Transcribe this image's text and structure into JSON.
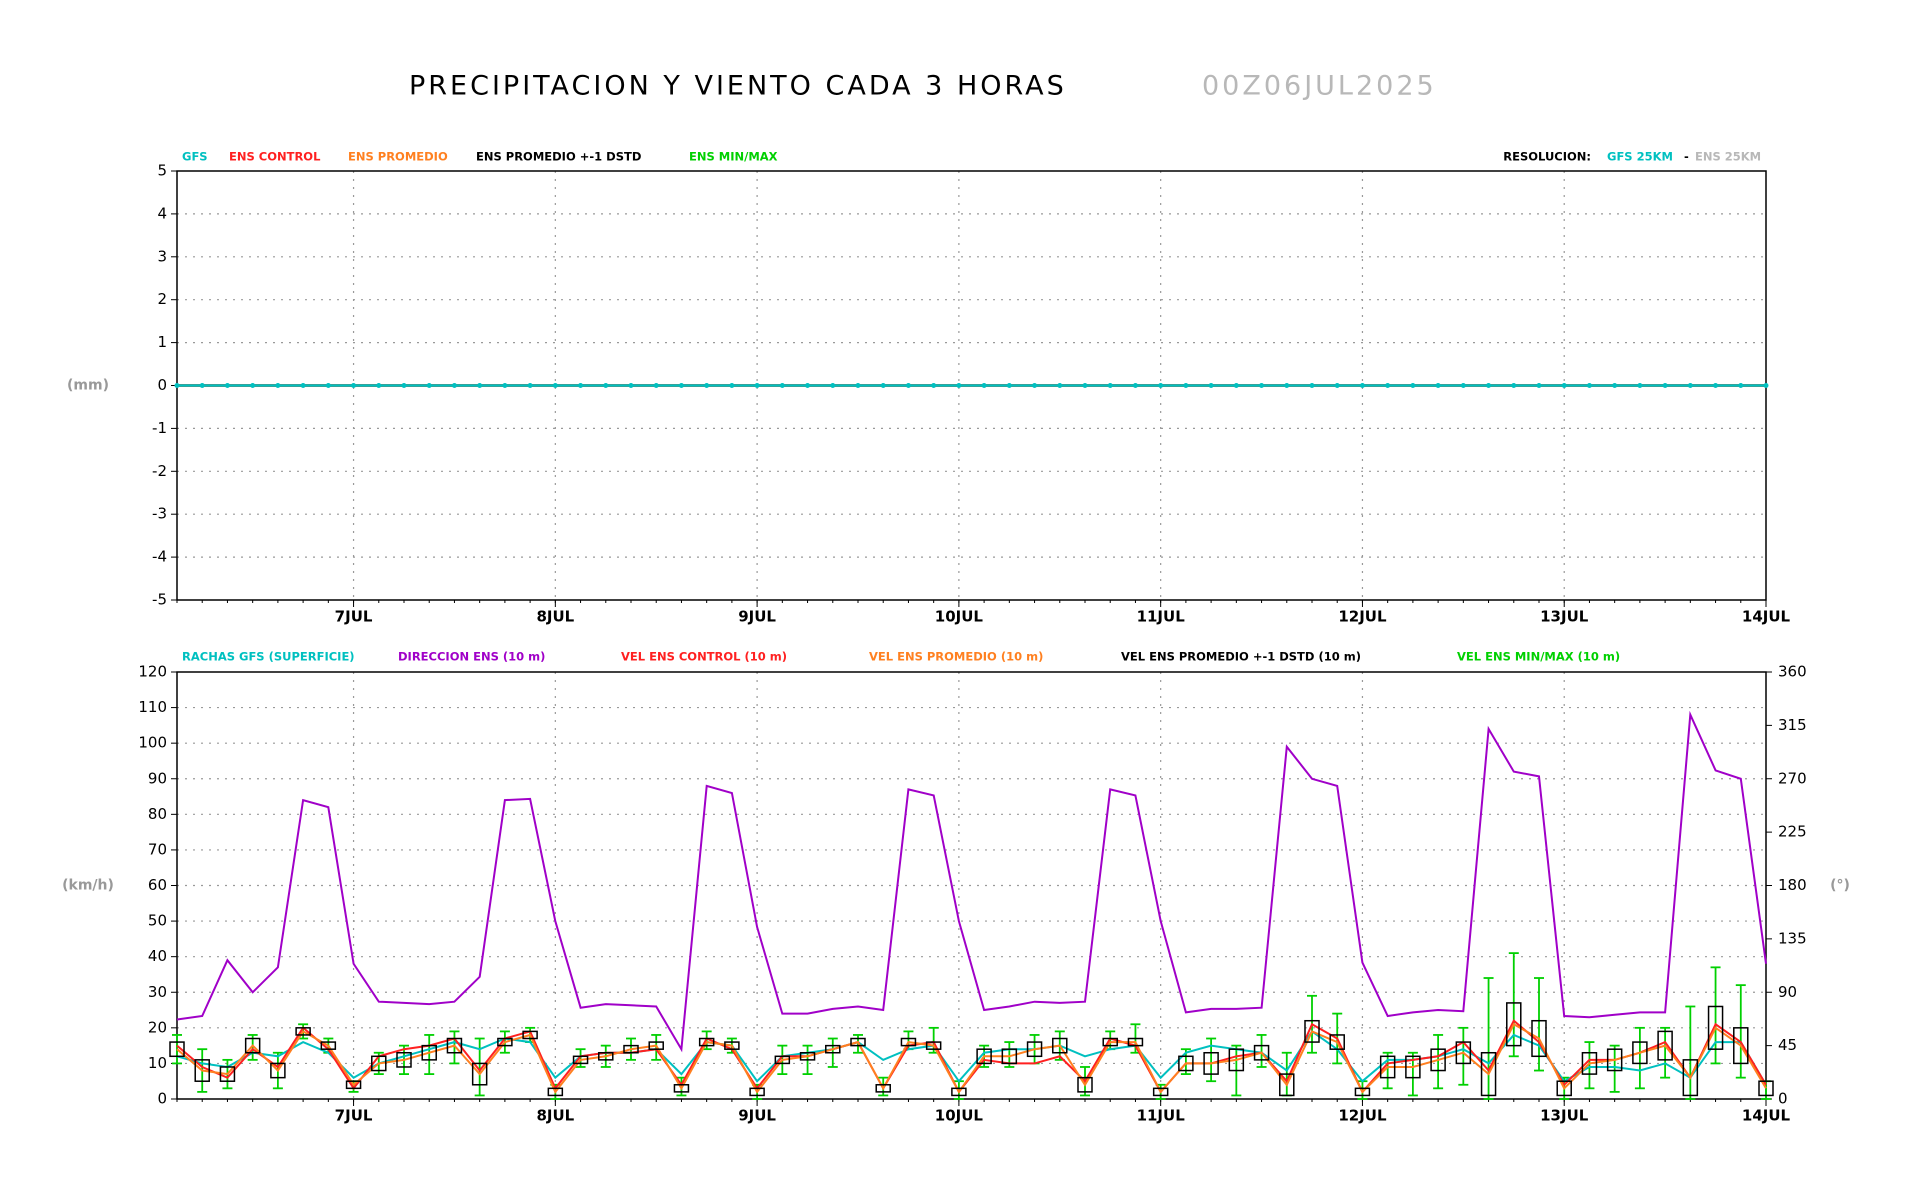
{
  "title": "PRECIPITACION Y VIENTO CADA 3 HORAS",
  "run": "00Z06JUL2025",
  "resolution": {
    "label": "RESOLUCION:",
    "gfs": "GFS 25KM",
    "separator": "-",
    "ens": "ENS 25KM"
  },
  "chart_data": [
    {
      "type": "line",
      "ylabel": "(mm)",
      "grid": true,
      "x": [
        3,
        6,
        9,
        12,
        15,
        18,
        21,
        24,
        27,
        30,
        33,
        36,
        39,
        42,
        45,
        48,
        51,
        54,
        57,
        60,
        63,
        66,
        69,
        72,
        75,
        78,
        81,
        84,
        87,
        90,
        93,
        96,
        99,
        102,
        105,
        108,
        111,
        114,
        117,
        120,
        123,
        126,
        129,
        132,
        135,
        138,
        141,
        144,
        147,
        150,
        153,
        156,
        159,
        162,
        165,
        168,
        171,
        174,
        177,
        180,
        183,
        186,
        189,
        192
      ],
      "xlim": [
        3,
        192
      ],
      "xticks": [
        {
          "value": 24,
          "label": "7JUL"
        },
        {
          "value": 48,
          "label": "8JUL"
        },
        {
          "value": 72,
          "label": "9JUL"
        },
        {
          "value": 96,
          "label": "10JUL"
        },
        {
          "value": 120,
          "label": "11JUL"
        },
        {
          "value": 144,
          "label": "12JUL"
        },
        {
          "value": 168,
          "label": "13JUL"
        },
        {
          "value": 192,
          "label": "14JUL"
        }
      ],
      "ylim": [
        -5,
        5
      ],
      "yticks": [
        -5,
        -4,
        -3,
        -2,
        -1,
        0,
        1,
        2,
        3,
        4,
        5
      ],
      "series": [
        {
          "name": "GFS",
          "color": "#00c0c0",
          "values": [
            0,
            0,
            0,
            0,
            0,
            0,
            0,
            0,
            0,
            0,
            0,
            0,
            0,
            0,
            0,
            0,
            0,
            0,
            0,
            0,
            0,
            0,
            0,
            0,
            0,
            0,
            0,
            0,
            0,
            0,
            0,
            0,
            0,
            0,
            0,
            0,
            0,
            0,
            0,
            0,
            0,
            0,
            0,
            0,
            0,
            0,
            0,
            0,
            0,
            0,
            0,
            0,
            0,
            0,
            0,
            0,
            0,
            0,
            0,
            0,
            0,
            0,
            0,
            0
          ]
        },
        {
          "name": "ENS CONTROL",
          "color": "#ff2020",
          "values": [
            0,
            0,
            0,
            0,
            0,
            0,
            0,
            0,
            0,
            0,
            0,
            0,
            0,
            0,
            0,
            0,
            0,
            0,
            0,
            0,
            0,
            0,
            0,
            0,
            0,
            0,
            0,
            0,
            0,
            0,
            0,
            0,
            0,
            0,
            0,
            0,
            0,
            0,
            0,
            0,
            0,
            0,
            0,
            0,
            0,
            0,
            0,
            0,
            0,
            0,
            0,
            0,
            0,
            0,
            0,
            0,
            0,
            0,
            0,
            0,
            0,
            0,
            0,
            0
          ]
        },
        {
          "name": "ENS PROMEDIO",
          "color": "#ff8020",
          "values": [
            0,
            0,
            0,
            0,
            0,
            0,
            0,
            0,
            0,
            0,
            0,
            0,
            0,
            0,
            0,
            0,
            0,
            0,
            0,
            0,
            0,
            0,
            0,
            0,
            0,
            0,
            0,
            0,
            0,
            0,
            0,
            0,
            0,
            0,
            0,
            0,
            0,
            0,
            0,
            0,
            0,
            0,
            0,
            0,
            0,
            0,
            0,
            0,
            0,
            0,
            0,
            0,
            0,
            0,
            0,
            0,
            0,
            0,
            0,
            0,
            0,
            0,
            0,
            0
          ]
        },
        {
          "name": "ENS PROMEDIO +-1 DSTD",
          "color": "#000000",
          "values": [
            0,
            0,
            0,
            0,
            0,
            0,
            0,
            0,
            0,
            0,
            0,
            0,
            0,
            0,
            0,
            0,
            0,
            0,
            0,
            0,
            0,
            0,
            0,
            0,
            0,
            0,
            0,
            0,
            0,
            0,
            0,
            0,
            0,
            0,
            0,
            0,
            0,
            0,
            0,
            0,
            0,
            0,
            0,
            0,
            0,
            0,
            0,
            0,
            0,
            0,
            0,
            0,
            0,
            0,
            0,
            0,
            0,
            0,
            0,
            0,
            0,
            0,
            0,
            0
          ]
        },
        {
          "name": "ENS MIN/MAX",
          "color": "#00d000",
          "values": [
            0,
            0,
            0,
            0,
            0,
            0,
            0,
            0,
            0,
            0,
            0,
            0,
            0,
            0,
            0,
            0,
            0,
            0,
            0,
            0,
            0,
            0,
            0,
            0,
            0,
            0,
            0,
            0,
            0,
            0,
            0,
            0,
            0,
            0,
            0,
            0,
            0,
            0,
            0,
            0,
            0,
            0,
            0,
            0,
            0,
            0,
            0,
            0,
            0,
            0,
            0,
            0,
            0,
            0,
            0,
            0,
            0,
            0,
            0,
            0,
            0,
            0,
            0,
            0
          ]
        }
      ]
    },
    {
      "type": "wind",
      "ylabel": "(km/h)",
      "y2label": "(°)",
      "grid": true,
      "x": [
        3,
        6,
        9,
        12,
        15,
        18,
        21,
        24,
        27,
        30,
        33,
        36,
        39,
        42,
        45,
        48,
        51,
        54,
        57,
        60,
        63,
        66,
        69,
        72,
        75,
        78,
        81,
        84,
        87,
        90,
        93,
        96,
        99,
        102,
        105,
        108,
        111,
        114,
        117,
        120,
        123,
        126,
        129,
        132,
        135,
        138,
        141,
        144,
        147,
        150,
        153,
        156,
        159,
        162,
        165,
        168,
        171,
        174,
        177,
        180,
        183,
        186,
        189,
        192
      ],
      "xlim": [
        3,
        192
      ],
      "xticks": [
        {
          "value": 24,
          "label": "7JUL"
        },
        {
          "value": 48,
          "label": "8JUL"
        },
        {
          "value": 72,
          "label": "9JUL"
        },
        {
          "value": 96,
          "label": "10JUL"
        },
        {
          "value": 120,
          "label": "11JUL"
        },
        {
          "value": 144,
          "label": "12JUL"
        },
        {
          "value": 168,
          "label": "13JUL"
        },
        {
          "value": 192,
          "label": "14JUL"
        }
      ],
      "ylim": [
        0,
        120
      ],
      "yticks": [
        0,
        10,
        20,
        30,
        40,
        50,
        60,
        70,
        80,
        90,
        100,
        110,
        120
      ],
      "y2lim": [
        0,
        360
      ],
      "y2ticks": [
        0,
        45,
        90,
        135,
        180,
        225,
        270,
        315,
        360
      ],
      "series": [
        {
          "name": "RACHAS GFS (SUPERFICIE)",
          "color": "#00c0c0",
          "values": [
            12,
            10,
            9,
            13,
            12,
            16,
            13,
            6,
            10,
            12,
            14,
            16,
            14,
            17,
            16,
            6,
            12,
            13,
            13,
            14,
            7,
            16,
            15,
            5,
            12,
            13,
            14,
            16,
            11,
            14,
            15,
            5,
            13,
            14,
            14,
            15,
            12,
            14,
            15,
            6,
            13,
            15,
            14,
            13,
            8,
            19,
            14,
            5,
            11,
            11,
            12,
            14,
            10,
            18,
            15,
            5,
            9,
            9,
            8,
            10,
            6,
            16,
            16,
            4
          ]
        },
        {
          "name": "DIRECCION ENS (10 m)",
          "color": "#a000c8",
          "axis": "y2",
          "values": [
            67,
            70,
            117,
            90,
            111,
            252,
            246,
            114,
            82,
            81,
            80,
            82,
            103,
            252,
            253,
            150,
            77,
            80,
            79,
            78,
            42,
            264,
            258,
            145,
            72,
            72,
            76,
            78,
            75,
            261,
            256,
            150,
            75,
            78,
            82,
            81,
            82,
            261,
            256,
            150,
            73,
            76,
            76,
            77,
            297,
            270,
            264,
            115,
            70,
            73,
            75,
            74,
            312,
            276,
            272,
            70,
            69,
            71,
            73,
            73,
            324,
            277,
            270,
            114
          ]
        },
        {
          "name": "VEL ENS CONTROL (10 m)",
          "color": "#ff2020",
          "values": [
            15,
            9,
            6,
            14,
            9,
            20,
            14,
            3,
            12,
            14,
            15,
            17,
            8,
            17,
            19,
            3,
            12,
            13,
            13,
            14,
            4,
            17,
            14,
            3,
            12,
            12,
            14,
            16,
            3,
            15,
            16,
            2,
            11,
            10,
            10,
            12,
            5,
            17,
            15,
            2,
            10,
            10,
            12,
            13,
            5,
            21,
            17,
            2,
            10,
            11,
            12,
            16,
            8,
            22,
            16,
            4,
            11,
            11,
            13,
            16,
            6,
            21,
            16,
            4
          ]
        },
        {
          "name": "VEL ENS PROMEDIO (10 m)",
          "color": "#ff8020",
          "values": [
            14,
            8,
            7,
            15,
            8,
            19,
            15,
            4,
            10,
            11,
            13,
            15,
            7,
            16,
            18,
            2,
            11,
            12,
            14,
            15,
            3,
            16,
            15,
            2,
            11,
            12,
            14,
            16,
            3,
            16,
            15,
            2,
            12,
            12,
            14,
            15,
            4,
            16,
            16,
            2,
            10,
            10,
            11,
            13,
            4,
            19,
            16,
            2,
            9,
            9,
            11,
            13,
            7,
            21,
            17,
            3,
            10,
            11,
            13,
            15,
            6,
            20,
            15,
            3
          ]
        },
        {
          "name": "VEL ENS PROMEDIO +-1 DSTD (10 m)",
          "color": "#000000",
          "values": [
            2,
            3,
            2,
            2,
            2,
            1,
            1,
            1,
            2,
            2,
            2,
            2,
            3,
            1,
            1,
            1,
            1,
            1,
            1,
            1,
            1,
            1,
            1,
            1,
            1,
            1,
            1,
            1,
            1,
            1,
            1,
            1,
            2,
            2,
            2,
            2,
            2,
            1,
            1,
            1,
            2,
            3,
            3,
            2,
            3,
            3,
            2,
            1,
            3,
            3,
            3,
            3,
            6,
            6,
            5,
            2,
            3,
            3,
            3,
            4,
            5,
            6,
            5,
            2
          ]
        },
        {
          "name": "VEL ENS MIN/MAX (10 m)",
          "color": "#00d000",
          "min": [
            10,
            2,
            3,
            11,
            3,
            17,
            13,
            2,
            7,
            7,
            7,
            10,
            1,
            13,
            16,
            0,
            9,
            9,
            11,
            11,
            1,
            14,
            13,
            0,
            7,
            7,
            9,
            13,
            1,
            14,
            13,
            0,
            9,
            9,
            10,
            11,
            1,
            14,
            13,
            0,
            7,
            5,
            1,
            9,
            1,
            13,
            10,
            0,
            3,
            1,
            3,
            4,
            0,
            12,
            8,
            0,
            3,
            2,
            3,
            6,
            0,
            10,
            6,
            0
          ],
          "max": [
            18,
            14,
            11,
            18,
            13,
            21,
            17,
            5,
            13,
            15,
            18,
            19,
            17,
            19,
            20,
            4,
            14,
            15,
            17,
            18,
            6,
            19,
            17,
            4,
            15,
            15,
            17,
            18,
            6,
            19,
            20,
            5,
            15,
            16,
            18,
            19,
            9,
            19,
            21,
            4,
            14,
            17,
            15,
            18,
            13,
            29,
            24,
            5,
            13,
            13,
            18,
            20,
            34,
            41,
            34,
            6,
            16,
            15,
            20,
            20,
            26,
            37,
            32,
            5
          ]
        }
      ]
    }
  ]
}
